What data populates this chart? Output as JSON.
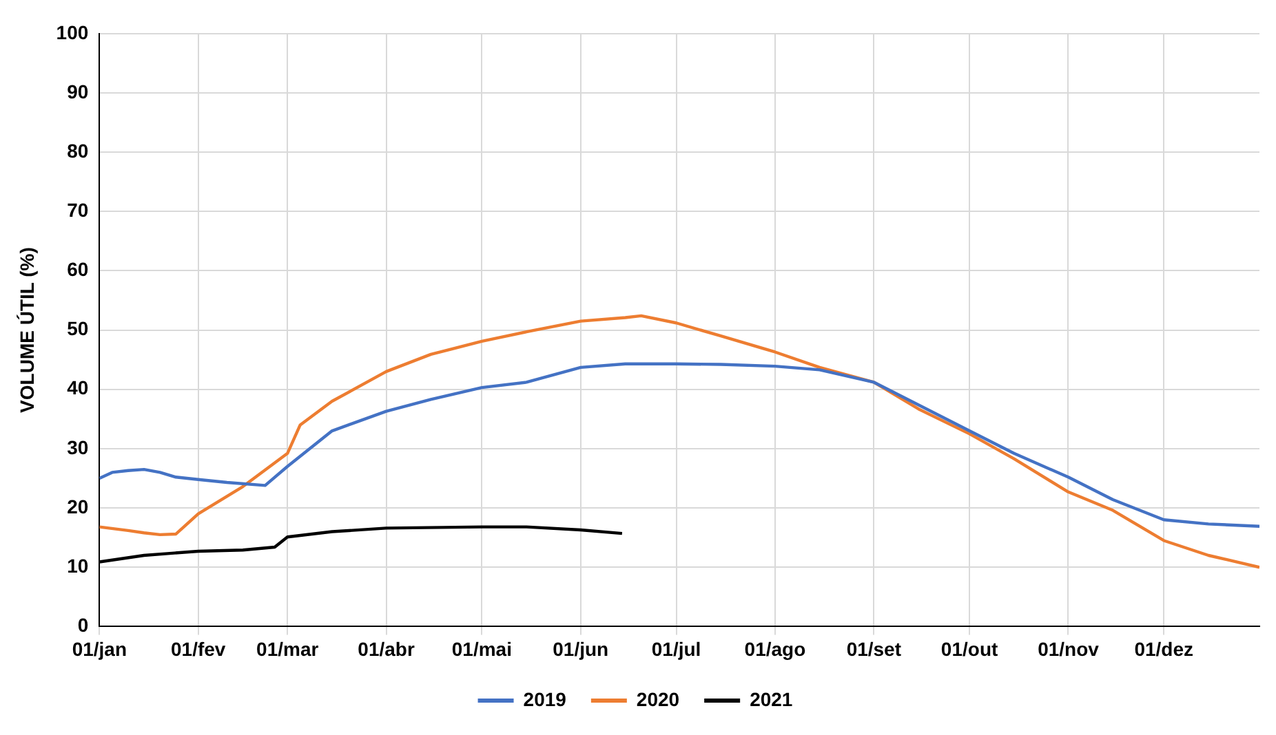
{
  "chart_data": {
    "type": "line",
    "ylabel": "VOLUME ÚTIL (%)",
    "xlim": [
      "--01-01",
      "--12-31"
    ],
    "xticks": [
      {
        "value": "--01-01",
        "label": "01/jan"
      },
      {
        "value": "--02-01",
        "label": "01/fev"
      },
      {
        "value": "--03-01",
        "label": "01/mar"
      },
      {
        "value": "--04-01",
        "label": "01/abr"
      },
      {
        "value": "--05-01",
        "label": "01/mai"
      },
      {
        "value": "--06-01",
        "label": "01/jun"
      },
      {
        "value": "--07-01",
        "label": "01/jul"
      },
      {
        "value": "--08-01",
        "label": "01/ago"
      },
      {
        "value": "--09-01",
        "label": "01/set"
      },
      {
        "value": "--10-01",
        "label": "01/out"
      },
      {
        "value": "--11-01",
        "label": "01/nov"
      },
      {
        "value": "--12-01",
        "label": "01/dez"
      }
    ],
    "ylim": [
      0,
      100
    ],
    "yticks": [
      0,
      10,
      20,
      30,
      40,
      50,
      60,
      70,
      80,
      90,
      100
    ],
    "grid": true,
    "legend": "bottom",
    "marker": "none",
    "line_style": "solid",
    "series": [
      {
        "name": "2019",
        "color": "#4472c4",
        "x": [
          "--01-01",
          "--01-05",
          "--01-10",
          "--01-15",
          "--01-20",
          "--01-25",
          "--02-01",
          "--02-10",
          "--02-22",
          "--03-01",
          "--03-15",
          "--04-01",
          "--04-15",
          "--05-01",
          "--05-15",
          "--06-01",
          "--06-15",
          "--07-01",
          "--07-15",
          "--08-01",
          "--08-15",
          "--09-01",
          "--10-01",
          "--10-15",
          "--11-01",
          "--11-15",
          "--12-01",
          "--12-15",
          "--12-31"
        ],
        "values": [
          25,
          26,
          26.3,
          26.5,
          26,
          25.2,
          24.8,
          24.3,
          23.8,
          27,
          33,
          36.3,
          38.3,
          40.3,
          41.2,
          43.7,
          44.3,
          44.3,
          44.2,
          43.9,
          43.3,
          41.2,
          33,
          29.2,
          25.2,
          21.4,
          18,
          17.3,
          16.9
        ]
      },
      {
        "name": "2020",
        "color": "#ed7d31",
        "x": [
          "--01-01",
          "--01-10",
          "--01-15",
          "--01-20",
          "--01-25",
          "--02-01",
          "--02-15",
          "--03-01",
          "--03-05",
          "--03-15",
          "--04-01",
          "--04-15",
          "--05-01",
          "--05-15",
          "--06-01",
          "--06-15",
          "--06-20",
          "--07-01",
          "--07-15",
          "--08-01",
          "--08-15",
          "--09-01",
          "--09-15",
          "--10-01",
          "--10-15",
          "--11-01",
          "--11-15",
          "--12-01",
          "--12-15",
          "--12-31"
        ],
        "values": [
          16.8,
          16.2,
          15.8,
          15.5,
          15.6,
          19,
          23.6,
          29.2,
          34,
          38,
          43,
          45.9,
          48.1,
          49.7,
          51.5,
          52.1,
          52.4,
          51.2,
          49,
          46.3,
          43.7,
          41.2,
          36.7,
          32.5,
          28.3,
          22.7,
          19.6,
          14.5,
          12,
          10
        ]
      },
      {
        "name": "2021",
        "color": "#000000",
        "x": [
          "--01-01",
          "--01-15",
          "--02-01",
          "--02-15",
          "--02-25",
          "--03-01",
          "--03-15",
          "--04-01",
          "--05-01",
          "--05-15",
          "--06-01",
          "--06-14"
        ],
        "values": [
          10.9,
          12,
          12.7,
          12.9,
          13.4,
          15.1,
          16,
          16.6,
          16.8,
          16.8,
          16.3,
          15.7
        ]
      }
    ]
  }
}
